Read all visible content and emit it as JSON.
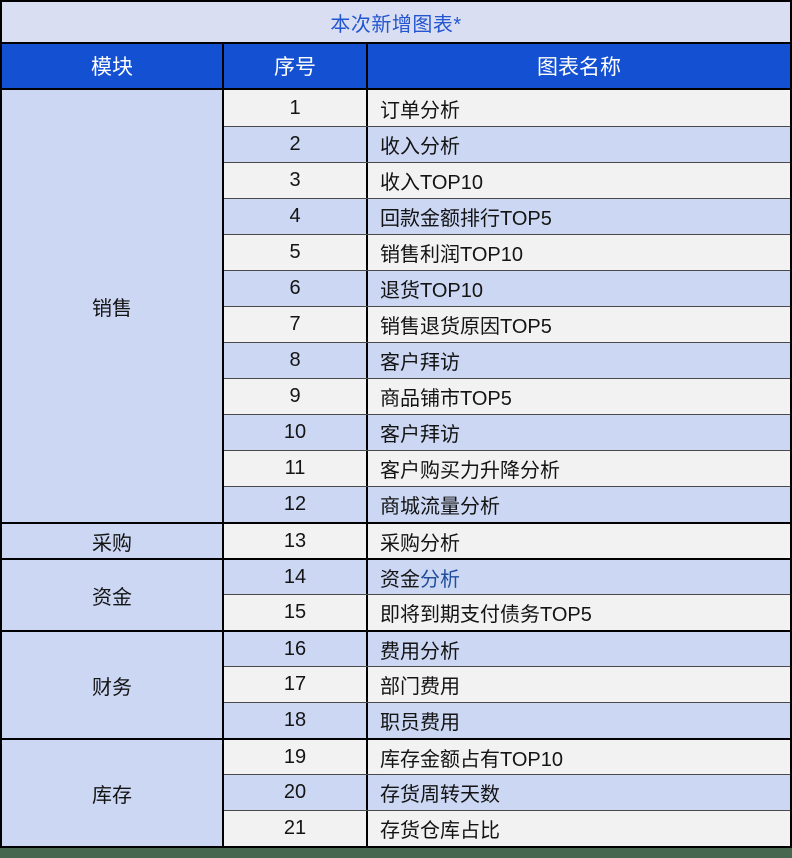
{
  "title": "本次新增图表*",
  "columns": {
    "module": "模块",
    "no": "序号",
    "name": "图表名称"
  },
  "groups": [
    {
      "module": "销售",
      "rows": [
        {
          "no": "1",
          "name": "订单分析"
        },
        {
          "no": "2",
          "name": "收入分析"
        },
        {
          "no": "3",
          "name": "收入TOP10"
        },
        {
          "no": "4",
          "name": "回款金额排行TOP5"
        },
        {
          "no": "5",
          "name": "销售利润TOP10"
        },
        {
          "no": "6",
          "name": "退货TOP10"
        },
        {
          "no": "7",
          "name": "销售退货原因TOP5"
        },
        {
          "no": "8",
          "name": "客户拜访"
        },
        {
          "no": "9",
          "name": "商品铺市TOP5"
        },
        {
          "no": "10",
          "name": "客户拜访"
        },
        {
          "no": "11",
          "name": "客户购买力升降分析"
        },
        {
          "no": "12",
          "name": "商城流量分析"
        }
      ]
    },
    {
      "module": "采购",
      "rows": [
        {
          "no": "13",
          "name": "采购分析"
        }
      ]
    },
    {
      "module": "资金",
      "rows": [
        {
          "no": "14",
          "name_parts": [
            {
              "text": "资金",
              "blue": false
            },
            {
              "text": "分析",
              "blue": true
            }
          ]
        },
        {
          "no": "15",
          "name": "即将到期支付债务TOP5"
        }
      ]
    },
    {
      "module": "财务",
      "rows": [
        {
          "no": "16",
          "name": "费用分析"
        },
        {
          "no": "17",
          "name": "部门费用"
        },
        {
          "no": "18",
          "name": "职员费用"
        }
      ]
    },
    {
      "module": "库存",
      "rows": [
        {
          "no": "19",
          "name": "库存金额占有TOP10"
        },
        {
          "no": "20",
          "name": "存货周转天数"
        },
        {
          "no": "21",
          "name": "存货仓库占比"
        }
      ]
    }
  ],
  "colors": {
    "header_bg": "#1450d2",
    "header_text": "#ffffff",
    "title_bg": "#d9def2",
    "title_text": "#2456d0",
    "row_odd_bg": "#f2f2f2",
    "row_even_bg": "#ccd7f3",
    "module_bg": "#ccd7f3",
    "link_text": "#1f4e9c",
    "bottom_strip": "#47684f"
  }
}
